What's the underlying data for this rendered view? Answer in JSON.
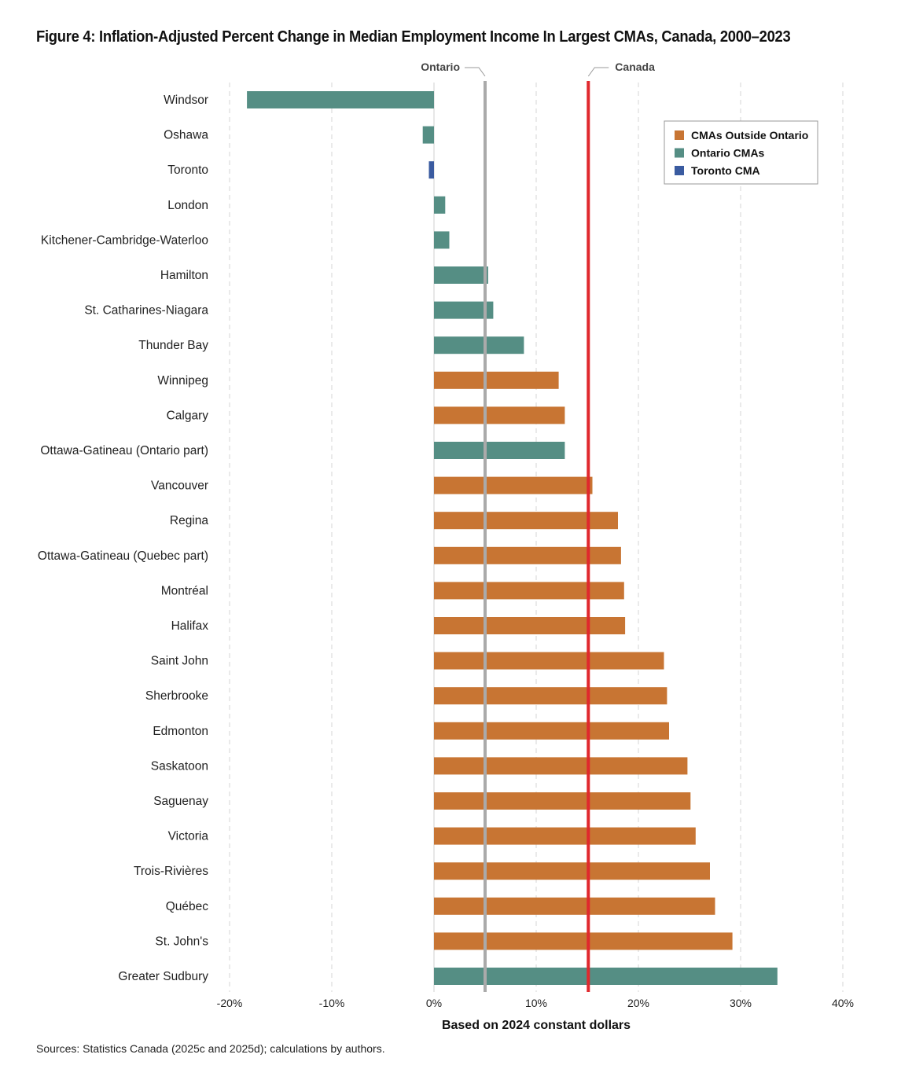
{
  "chart_data": {
    "type": "bar",
    "orientation": "horizontal",
    "title": "Figure 4: Inflation-Adjusted Percent Change in Median Employment Income In Largest CMAs, Canada, 2000–2023",
    "xlabel": "Based on 2024 constant dollars",
    "ylabel": "",
    "xlim": [
      -20,
      40
    ],
    "xticks": [
      -20,
      -10,
      0,
      10,
      20,
      30,
      40
    ],
    "xtick_labels": [
      "-20%",
      "-10%",
      "0%",
      "10%",
      "20%",
      "30%",
      "40%"
    ],
    "grid": true,
    "legend_position": "top-right",
    "legend": [
      {
        "group": "outside",
        "label": "CMAs Outside Ontario",
        "color": "#C87533"
      },
      {
        "group": "ontario",
        "label": "Ontario CMAs",
        "color": "#558E84"
      },
      {
        "group": "toronto",
        "label": "Toronto CMA",
        "color": "#3A5BA0"
      }
    ],
    "reference_lines": [
      {
        "label": "Ontario",
        "value": 5.0,
        "color": "#AAAAAA"
      },
      {
        "label": "Canada",
        "value": 15.1,
        "color": "#E0282D"
      }
    ],
    "bars": [
      {
        "label": "Windsor",
        "value": -18.3,
        "group": "ontario"
      },
      {
        "label": "Oshawa",
        "value": -1.1,
        "group": "ontario"
      },
      {
        "label": "Toronto",
        "value": -0.5,
        "group": "toronto"
      },
      {
        "label": "London",
        "value": 1.1,
        "group": "ontario"
      },
      {
        "label": "Kitchener-Cambridge-Waterloo",
        "value": 1.5,
        "group": "ontario"
      },
      {
        "label": "Hamilton",
        "value": 5.3,
        "group": "ontario"
      },
      {
        "label": "St. Catharines-Niagara",
        "value": 5.8,
        "group": "ontario"
      },
      {
        "label": "Thunder Bay",
        "value": 8.8,
        "group": "ontario"
      },
      {
        "label": "Winnipeg",
        "value": 12.2,
        "group": "outside"
      },
      {
        "label": "Calgary",
        "value": 12.8,
        "group": "outside"
      },
      {
        "label": "Ottawa-Gatineau (Ontario part)",
        "value": 12.8,
        "group": "ontario"
      },
      {
        "label": "Vancouver",
        "value": 15.5,
        "group": "outside"
      },
      {
        "label": "Regina",
        "value": 18.0,
        "group": "outside"
      },
      {
        "label": "Ottawa-Gatineau (Quebec part)",
        "value": 18.3,
        "group": "outside"
      },
      {
        "label": "Montréal",
        "value": 18.6,
        "group": "outside"
      },
      {
        "label": "Halifax",
        "value": 18.7,
        "group": "outside"
      },
      {
        "label": "Saint John",
        "value": 22.5,
        "group": "outside"
      },
      {
        "label": "Sherbrooke",
        "value": 22.8,
        "group": "outside"
      },
      {
        "label": "Edmonton",
        "value": 23.0,
        "group": "outside"
      },
      {
        "label": "Saskatoon",
        "value": 24.8,
        "group": "outside"
      },
      {
        "label": "Saguenay",
        "value": 25.1,
        "group": "outside"
      },
      {
        "label": "Victoria",
        "value": 25.6,
        "group": "outside"
      },
      {
        "label": "Trois-Rivières",
        "value": 27.0,
        "group": "outside"
      },
      {
        "label": "Québec",
        "value": 27.5,
        "group": "outside"
      },
      {
        "label": "St. John's",
        "value": 29.2,
        "group": "outside"
      },
      {
        "label": "Greater Sudbury",
        "value": 33.6,
        "group": "ontario"
      }
    ]
  },
  "source_note": "Sources: Statistics Canada (2025c and 2025d); calculations by authors."
}
